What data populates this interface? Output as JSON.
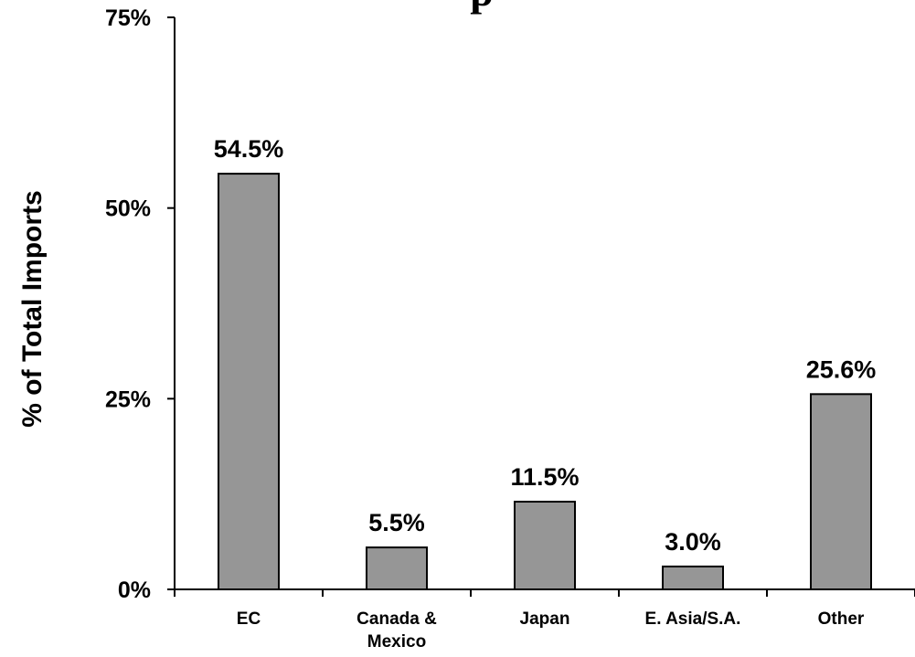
{
  "chart_data": {
    "type": "bar",
    "title_fragment": "p",
    "ylabel": "% of Total Imports",
    "xlabel": "",
    "ylim": [
      0,
      75
    ],
    "yticks": [
      0,
      25,
      50,
      75
    ],
    "ytick_labels": [
      "0%",
      "25%",
      "50%",
      "75%"
    ],
    "categories": [
      [
        "EC"
      ],
      [
        "Canada &",
        "Mexico"
      ],
      [
        "Japan"
      ],
      [
        "E. Asia/S.A."
      ],
      [
        "Other"
      ]
    ],
    "values": [
      54.5,
      5.5,
      11.5,
      3.0,
      25.6
    ],
    "value_labels": [
      "54.5%",
      "5.5%",
      "11.5%",
      "3.0%",
      "25.6%"
    ],
    "bar_color": "#969696",
    "bar_edge_color": "#000000",
    "grid": false,
    "legend": "none"
  }
}
